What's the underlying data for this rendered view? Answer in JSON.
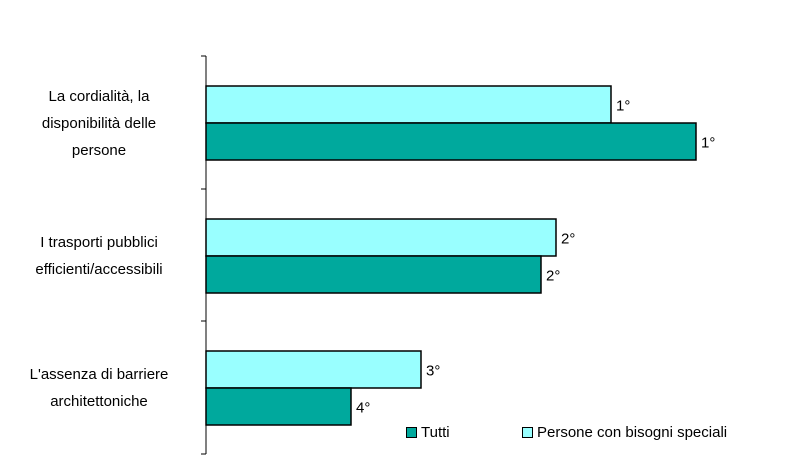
{
  "chart_data": {
    "type": "bar",
    "orientation": "horizontal",
    "categories": [
      "La cordialità, la disponibilità delle persone",
      "I trasporti pubblici efficienti/accessibili",
      "L'assenza di barriere architettoniche"
    ],
    "category_label_lines": [
      [
        "La cordialità, la",
        "disponibilità delle",
        "persone"
      ],
      [
        "I trasporti pubblici",
        "efficienti/accessibili"
      ],
      [
        "L'assenza di barriere",
        "architettoniche"
      ]
    ],
    "series": [
      {
        "name": "Persone con bisogni speciali",
        "color": "#99FFFF",
        "values": [
          81,
          70,
          43
        ],
        "labels": [
          "1°",
          "2°",
          "3°"
        ]
      },
      {
        "name": "Tutti",
        "color": "#00A99D",
        "values": [
          98,
          67,
          29
        ],
        "labels": [
          "1°",
          "2°",
          "4°"
        ]
      }
    ],
    "xlim": [
      0,
      100
    ],
    "grid": false,
    "legend": {
      "position": "bottom-right",
      "order": [
        "Tutti",
        "Persone con bisogni speciali"
      ]
    }
  }
}
